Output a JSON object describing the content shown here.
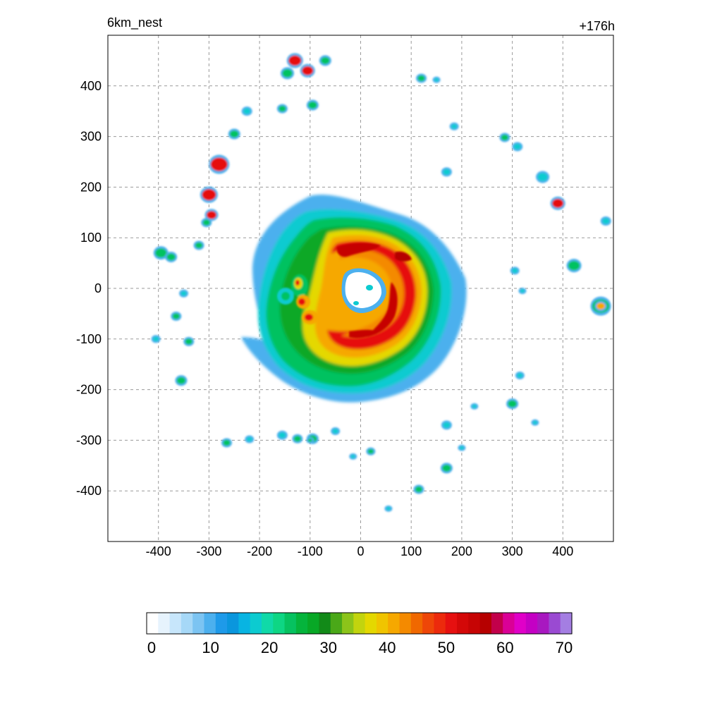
{
  "header": {
    "left_label": "6km_nest",
    "right_label": "+176h"
  },
  "chart_data": {
    "type": "heatmap",
    "title": "6km_nest",
    "time_label": "+176h",
    "xlabel": "",
    "ylabel": "",
    "xlim": [
      -500,
      500
    ],
    "ylim": [
      -500,
      500
    ],
    "x_ticks": [
      -400,
      -300,
      -200,
      -100,
      0,
      100,
      200,
      300,
      400
    ],
    "y_ticks": [
      400,
      300,
      200,
      100,
      0,
      -100,
      -200,
      -300,
      -400
    ],
    "grid": true,
    "colorbar": {
      "min": 0,
      "max": 70,
      "tick_values": [
        0,
        10,
        20,
        30,
        40,
        50,
        60,
        70
      ],
      "colors": [
        "#ffffff",
        "#e6f3fd",
        "#c7e6fb",
        "#a6d8f7",
        "#7cc4f2",
        "#4cb0ee",
        "#1e9ae9",
        "#0a96dd",
        "#08b4e2",
        "#0ccbd0",
        "#10d9a8",
        "#0ed684",
        "#06c260",
        "#05b43c",
        "#08a826",
        "#128a18",
        "#4aa818",
        "#8cc41a",
        "#c2d40e",
        "#e4d800",
        "#f0c400",
        "#f6a800",
        "#f48a00",
        "#f06800",
        "#ee4608",
        "#ec2a0c",
        "#e61010",
        "#d40808",
        "#c60404",
        "#b60000",
        "#c2004a",
        "#da0096",
        "#e000c8",
        "#c400c4",
        "#a818c0",
        "#9a4ad2",
        "#a47ee2"
      ]
    },
    "field": {
      "description_units": "km",
      "eye_center": [
        0,
        0
      ]
    }
  }
}
